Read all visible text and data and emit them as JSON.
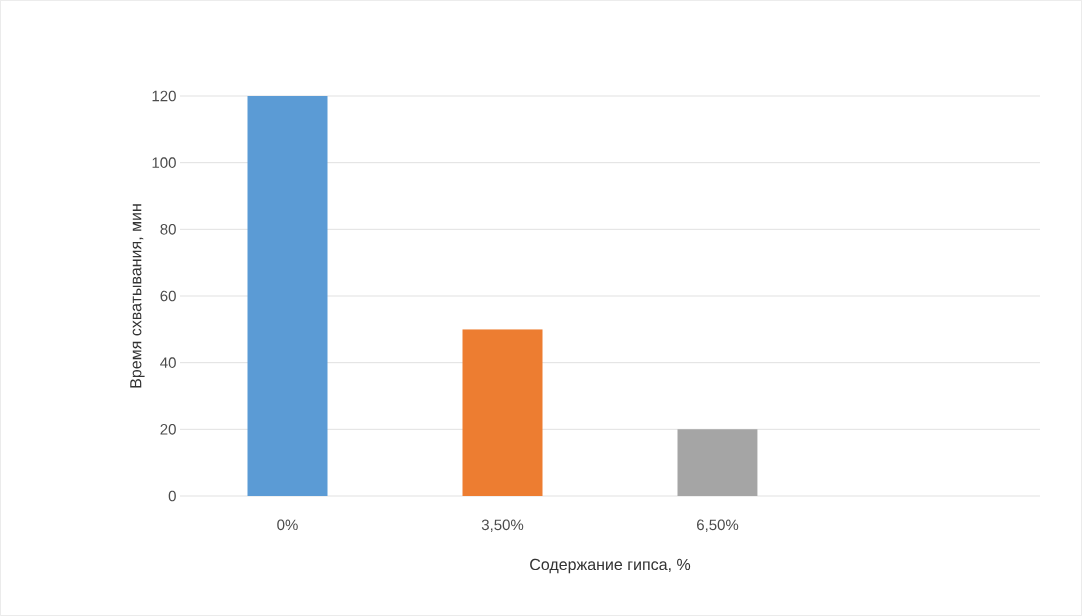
{
  "chart_data": {
    "type": "bar",
    "xlabel": "Содержание гипса, %",
    "ylabel": "Время схватывания, мин",
    "categories": [
      "0%",
      "3,50%",
      "6,50%"
    ],
    "values": [
      120,
      50,
      20
    ],
    "colors": [
      "#5b9bd5",
      "#ed7d31",
      "#a5a5a5"
    ],
    "ylim": [
      0,
      120
    ],
    "yticks": [
      0,
      20,
      40,
      60,
      80,
      100,
      120
    ],
    "grid": "y"
  }
}
